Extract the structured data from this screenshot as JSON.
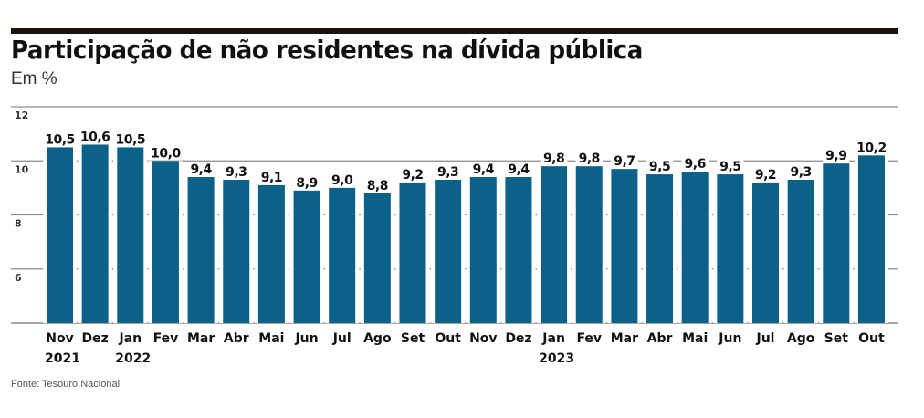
{
  "chart_data": {
    "type": "bar",
    "title": "Participação de não residentes na dívida pública",
    "subtitle": "Em %",
    "source": "Fonte: Tesouro Nacional",
    "xlabel": "",
    "ylabel": "",
    "ylim": [
      4,
      12
    ],
    "yticks": [
      6,
      8,
      10,
      12
    ],
    "grid": true,
    "legend": "none",
    "colors": {
      "bar": "#0c6188",
      "grid": "#8a8a8a",
      "rule": "#1a120c"
    },
    "categories": [
      "Nov",
      "Dez",
      "Jan",
      "Fev",
      "Mar",
      "Abr",
      "Mai",
      "Jun",
      "Jul",
      "Ago",
      "Set",
      "Out",
      "Nov",
      "Dez",
      "Jan",
      "Fev",
      "Mar",
      "Abr",
      "Mai",
      "Jun",
      "Jul",
      "Ago",
      "Set",
      "Out"
    ],
    "year_labels": [
      "2021",
      "",
      "2022",
      "",
      "",
      "",
      "",
      "",
      "",
      "",
      "",
      "",
      "",
      "",
      "2023",
      "",
      "",
      "",
      "",
      "",
      "",
      "",
      "",
      ""
    ],
    "values": [
      10.5,
      10.6,
      10.5,
      10.0,
      9.4,
      9.3,
      9.1,
      8.9,
      9.0,
      8.8,
      9.2,
      9.3,
      9.4,
      9.4,
      9.8,
      9.8,
      9.7,
      9.5,
      9.6,
      9.5,
      9.2,
      9.3,
      9.9,
      10.2
    ],
    "value_labels": [
      "10,5",
      "10,6",
      "10,5",
      "10,0",
      "9,4",
      "9,3",
      "9,1",
      "8,9",
      "9,0",
      "8,8",
      "9,2",
      "9,3",
      "9,4",
      "9,4",
      "9,8",
      "9,8",
      "9,7",
      "9,5",
      "9,6",
      "9,5",
      "9,2",
      "9,3",
      "9,9",
      "10,2"
    ]
  }
}
